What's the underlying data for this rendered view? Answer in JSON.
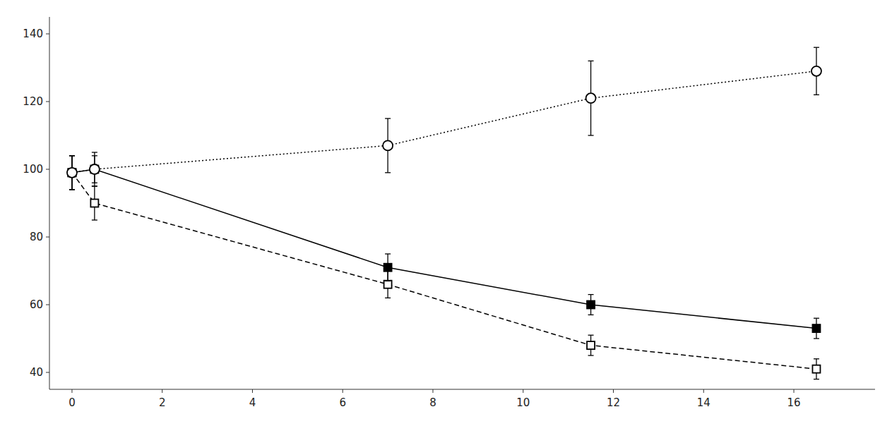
{
  "chart_data": {
    "type": "line",
    "x": [
      0.0,
      0.5,
      7.0,
      11.5,
      16.5
    ],
    "series": [
      {
        "values": [
          99,
          90,
          66,
          48,
          41
        ],
        "errors": [
          5,
          5,
          4,
          3,
          3
        ],
        "color": "#000000",
        "marker": "open-square",
        "line_style": "dashed"
      },
      {
        "values": [
          99,
          100,
          71,
          60,
          53
        ],
        "errors": [
          5,
          4,
          4,
          3,
          3
        ],
        "color": "#000000",
        "marker": "square",
        "line_style": "solid"
      },
      {
        "values": [
          99,
          100,
          107,
          121,
          129
        ],
        "errors": [
          5,
          5,
          8,
          11,
          7
        ],
        "color": "#000000",
        "marker": "open-circle",
        "line_style": "dotted"
      }
    ],
    "xlim": [
      -0.5,
      17.8
    ],
    "ylim": [
      35,
      145
    ],
    "xticks": [
      0,
      2,
      4,
      6,
      8,
      10,
      12,
      14,
      16
    ],
    "yticks": [
      40,
      60,
      80,
      100,
      120,
      140
    ],
    "grid": false
  }
}
